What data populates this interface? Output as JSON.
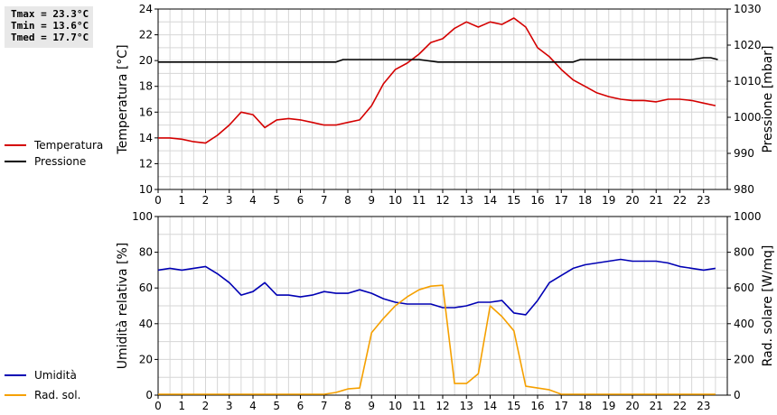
{
  "stats": {
    "tmax": "Tmax = 23.3°C",
    "tmin": "Tmin = 13.6°C",
    "tmed": "Tmed = 17.7°C"
  },
  "legend_top": {
    "temperature": {
      "label": "Temperatura",
      "color": "#d40000"
    },
    "pressure": {
      "label": "Pressione",
      "color": "#000000"
    }
  },
  "legend_bottom": {
    "humidity": {
      "label": "Umidità",
      "color": "#0000b4"
    },
    "radiation": {
      "label": "Rad. sol.",
      "color": "#f5a000"
    }
  },
  "chart_data": [
    {
      "type": "line",
      "ylabel_left": "Temperatura [°C]",
      "ylabel_right": "Pressione [mbar]",
      "xlim": [
        0,
        24
      ],
      "x_ticks": [
        "0",
        "1",
        "2",
        "3",
        "4",
        "5",
        "6",
        "7",
        "8",
        "9",
        "10",
        "11",
        "12",
        "13",
        "14",
        "15",
        "16",
        "17",
        "18",
        "19",
        "20",
        "21",
        "22",
        "23"
      ],
      "ylim_left": [
        10,
        24
      ],
      "y_ticks_left": [
        "10",
        "12",
        "14",
        "16",
        "18",
        "20",
        "22",
        "24"
      ],
      "ylim_right": [
        980,
        1030
      ],
      "y_ticks_right": [
        "980",
        "990",
        "1000",
        "1010",
        "1020",
        "1030"
      ],
      "grid": true,
      "series": [
        {
          "name": "Temperatura",
          "axis": "left",
          "x": [
            0,
            0.5,
            1,
            1.5,
            2,
            2.5,
            3,
            3.5,
            4,
            4.5,
            5,
            5.5,
            6,
            6.5,
            7,
            7.5,
            8,
            8.5,
            9,
            9.5,
            10,
            10.5,
            11,
            11.5,
            12,
            12.5,
            13,
            13.5,
            14,
            14.5,
            15,
            15.5,
            16,
            16.5,
            17,
            17.5,
            18,
            18.5,
            19,
            19.5,
            20,
            20.5,
            21,
            21.5,
            22,
            22.5,
            23,
            23.5
          ],
          "y": [
            14.0,
            14.0,
            13.9,
            13.7,
            13.6,
            14.2,
            15.0,
            16.0,
            15.8,
            14.8,
            15.4,
            15.5,
            15.4,
            15.2,
            15.0,
            15.0,
            15.2,
            15.4,
            16.5,
            18.2,
            19.3,
            19.8,
            20.5,
            21.4,
            21.7,
            22.5,
            23.0,
            22.6,
            23.0,
            22.8,
            23.3,
            22.6,
            21.0,
            20.3,
            19.3,
            18.5,
            18.0,
            17.5,
            17.2,
            17.0,
            16.9,
            16.9,
            16.8,
            17.0,
            17.0,
            16.9,
            16.7,
            16.5
          ]
        },
        {
          "name": "Pressione",
          "axis": "right",
          "x": [
            0,
            7.5,
            7.8,
            11,
            11.8,
            12,
            17.5,
            17.8,
            22.5,
            23,
            23.3,
            23.6
          ],
          "y": [
            1015.3,
            1015.3,
            1016.0,
            1016.0,
            1015.3,
            1015.3,
            1015.3,
            1016.0,
            1016.0,
            1016.5,
            1016.5,
            1016.0
          ]
        }
      ]
    },
    {
      "type": "line",
      "ylabel_left": "Umidità relativa [%]",
      "ylabel_right": "Rad. solare [W/mq]",
      "xlim": [
        0,
        24
      ],
      "x_ticks": [
        "0",
        "1",
        "2",
        "3",
        "4",
        "5",
        "6",
        "7",
        "8",
        "9",
        "10",
        "11",
        "12",
        "13",
        "14",
        "15",
        "16",
        "17",
        "18",
        "19",
        "20",
        "21",
        "22",
        "23"
      ],
      "ylim_left": [
        0,
        100
      ],
      "y_ticks_left": [
        "0",
        "20",
        "40",
        "60",
        "80",
        "100"
      ],
      "ylim_right": [
        0,
        1000
      ],
      "y_ticks_right": [
        "0",
        "200",
        "400",
        "600",
        "800",
        "1000"
      ],
      "grid": true,
      "series": [
        {
          "name": "Umidità",
          "axis": "left",
          "x": [
            0,
            0.5,
            1,
            1.5,
            2,
            2.5,
            3,
            3.5,
            4,
            4.5,
            5,
            5.5,
            6,
            6.5,
            7,
            7.5,
            8,
            8.5,
            9,
            9.5,
            10,
            10.5,
            11,
            11.5,
            12,
            12.5,
            13,
            13.5,
            14,
            14.5,
            15,
            15.5,
            16,
            16.5,
            17,
            17.5,
            18,
            18.5,
            19,
            19.5,
            20,
            20.5,
            21,
            21.5,
            22,
            22.5,
            23,
            23.5
          ],
          "y": [
            70,
            71,
            70,
            71,
            72,
            68,
            63,
            56,
            58,
            63,
            56,
            56,
            55,
            56,
            58,
            57,
            57,
            59,
            57,
            54,
            52,
            51,
            51,
            51,
            49,
            49,
            50,
            52,
            52,
            53,
            46,
            45,
            53,
            63,
            67,
            71,
            73,
            74,
            75,
            76,
            75,
            75,
            75,
            74,
            72,
            71,
            70,
            71
          ]
        },
        {
          "name": "Rad. sol.",
          "axis": "right",
          "x": [
            0,
            7,
            7.5,
            8,
            8.5,
            9,
            9.5,
            10,
            10.5,
            11,
            11.5,
            12,
            12.5,
            13,
            13.5,
            14,
            14.5,
            15,
            15.5,
            16,
            16.5,
            17,
            17.5,
            18,
            18.5,
            19,
            19.5,
            20,
            20.5,
            21,
            21.5,
            22,
            22.5,
            23,
            23.5
          ],
          "y": [
            5,
            5,
            15,
            35,
            40,
            350,
            430,
            500,
            550,
            590,
            610,
            615,
            65,
            65,
            120,
            500,
            440,
            360,
            50,
            40,
            30,
            5,
            5,
            5,
            5,
            5,
            5,
            5,
            5,
            5,
            5,
            5,
            5,
            5,
            5
          ]
        }
      ]
    }
  ]
}
